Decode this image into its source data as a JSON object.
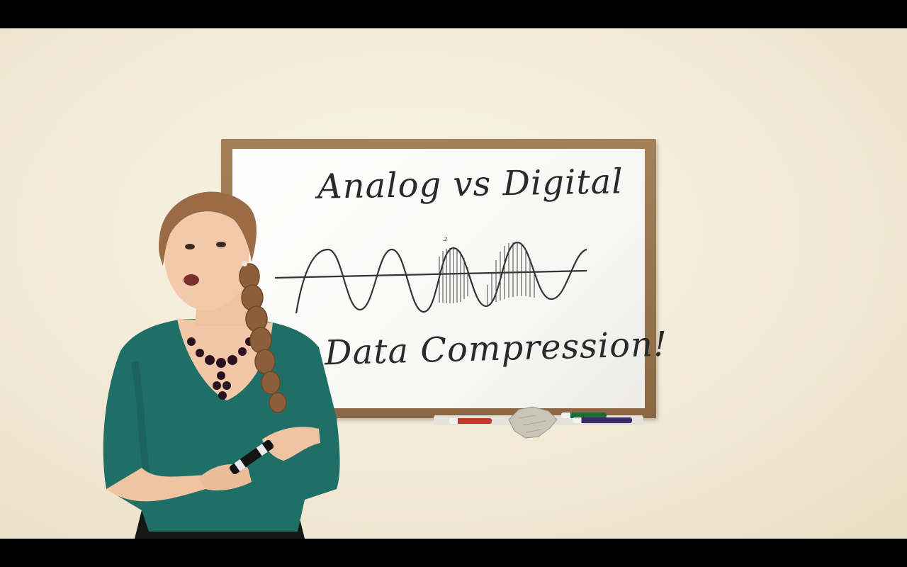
{
  "whiteboard": {
    "title": "Analog vs Digital",
    "subtitle": "Data Compression!"
  },
  "colors": {
    "wall": "#f3ecd8",
    "board_frame": "#9a7550",
    "ink": "#2a2a2a",
    "top_shirt": "#1f6f66",
    "hair": "#9a6b45",
    "necklace": "#2a1020"
  },
  "objects": [
    "whiteboard",
    "sine-wave-drawing",
    "marker-tray",
    "markers",
    "eraser-cloth",
    "presenter",
    "dry-erase-marker"
  ]
}
